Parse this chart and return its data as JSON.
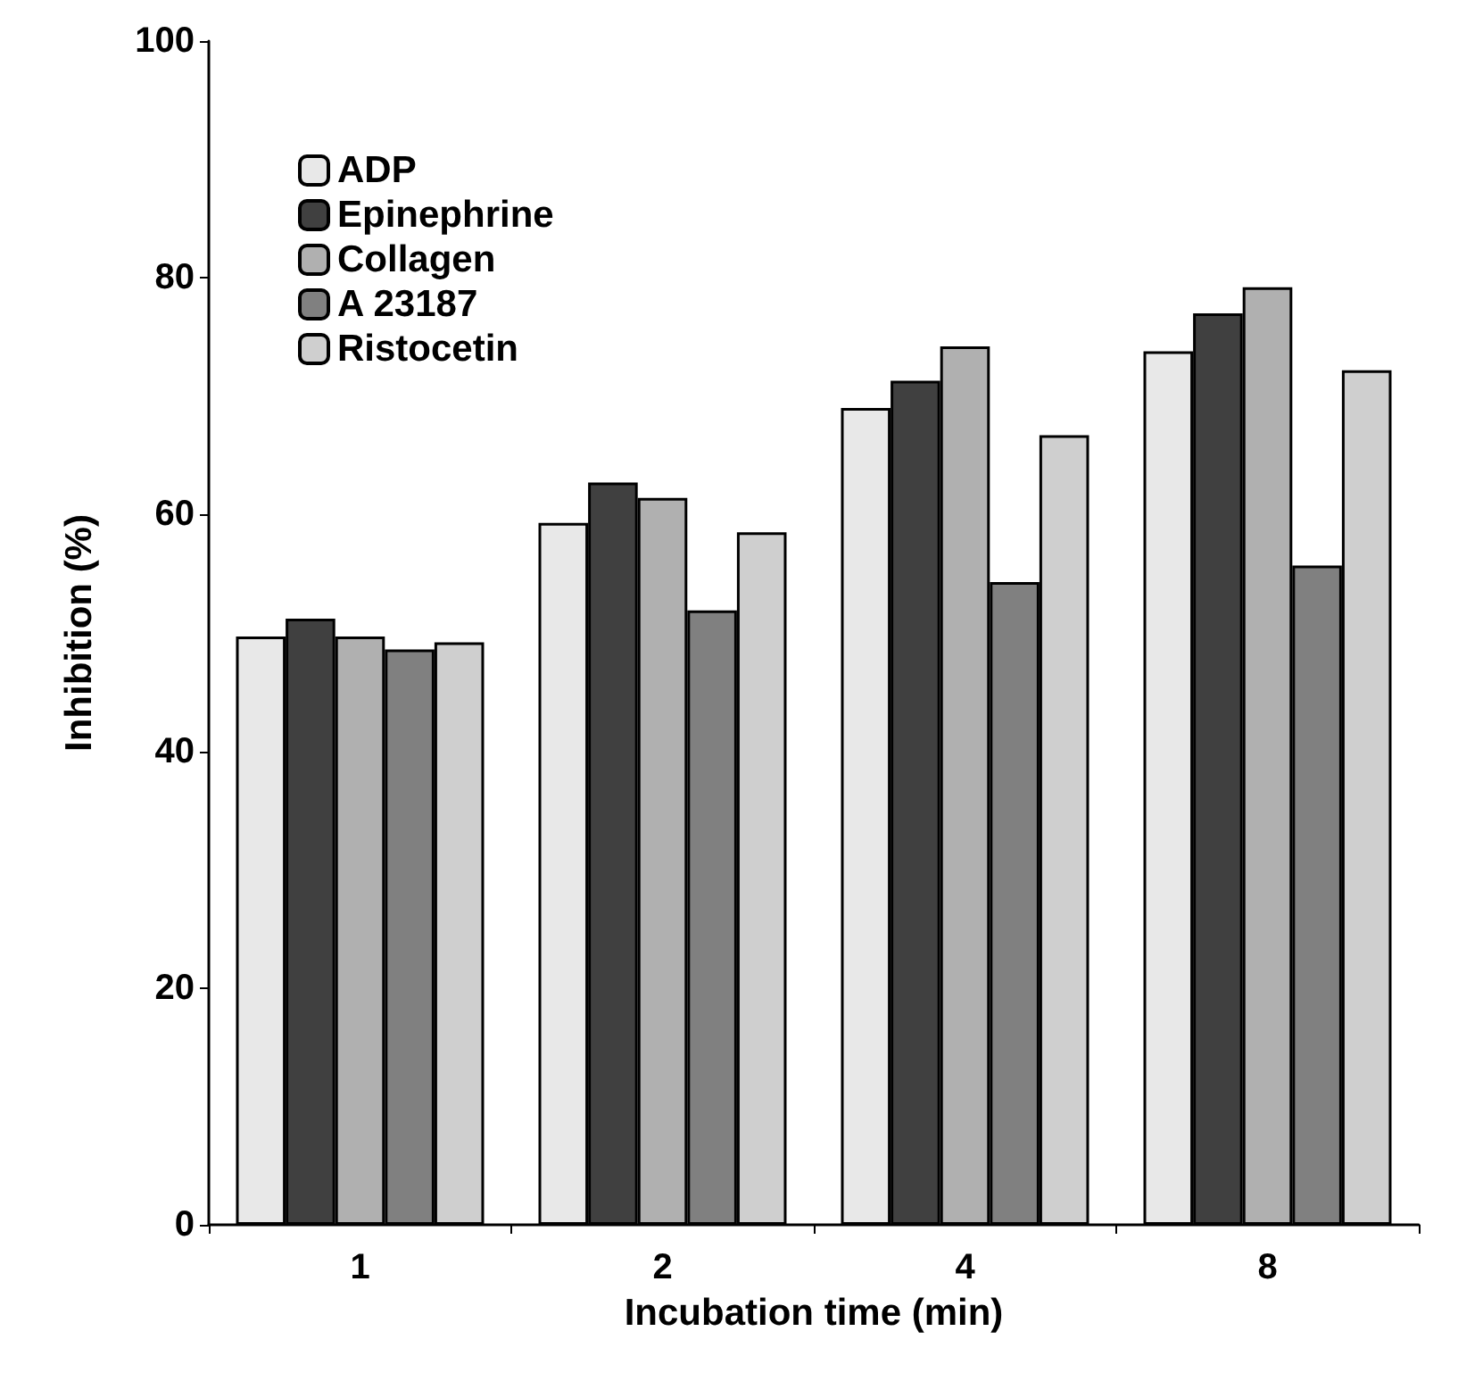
{
  "chart_data": {
    "type": "bar",
    "xlabel": "Incubation time (min)",
    "ylabel": "Inhibition (%)",
    "categories": [
      "1",
      "2",
      "4",
      "8"
    ],
    "series": [
      {
        "name": "ADP",
        "color": "#e8e8e8",
        "values": [
          49.7,
          59.3,
          69.0,
          73.8
        ]
      },
      {
        "name": "Epinephrine",
        "color": "#404040",
        "values": [
          51.2,
          62.7,
          71.3,
          77.0
        ]
      },
      {
        "name": "Collagen",
        "color": "#b0b0b0",
        "values": [
          49.7,
          61.4,
          74.2,
          79.2
        ]
      },
      {
        "name": "A 23187",
        "color": "#808080",
        "values": [
          48.6,
          51.9,
          54.3,
          55.7
        ]
      },
      {
        "name": "Ristocetin",
        "color": "#cfcfcf",
        "values": [
          49.2,
          58.5,
          66.7,
          72.2
        ]
      }
    ],
    "ylim": [
      0,
      100
    ],
    "yticks": [
      0,
      20,
      40,
      60,
      80,
      100
    ],
    "grid": false,
    "legend": "top left"
  }
}
